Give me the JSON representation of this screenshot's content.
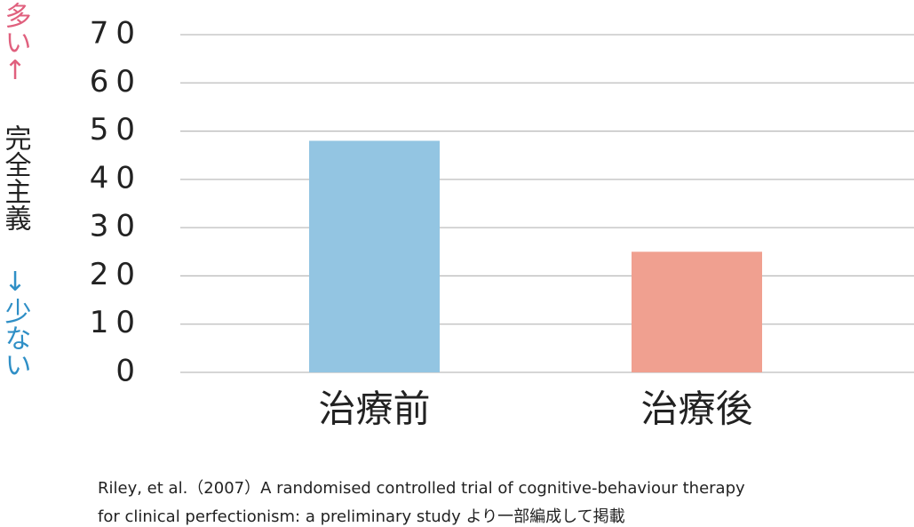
{
  "chart_data": {
    "type": "bar",
    "y_label": [
      {
        "text": "多い↑",
        "color": "#e0607e"
      },
      {
        "text": "完全主義",
        "color": "#222222"
      },
      {
        "text": "↓少ない",
        "color": "#2f8fc6"
      }
    ],
    "categories": [
      "治療前",
      "治療後"
    ],
    "values": [
      48,
      25
    ],
    "colors": [
      "#93c5e2",
      "#f0a090"
    ],
    "ylim": [
      0,
      70
    ],
    "yticks": [
      0,
      10,
      20,
      30,
      40,
      50,
      60,
      70
    ],
    "grid": true,
    "note": [
      "Riley, et al.（2007）A randomised controlled trial of cognitive-behaviour therapy",
      "for clinical perfectionism: a preliminary study より一部編成して掲載"
    ]
  }
}
